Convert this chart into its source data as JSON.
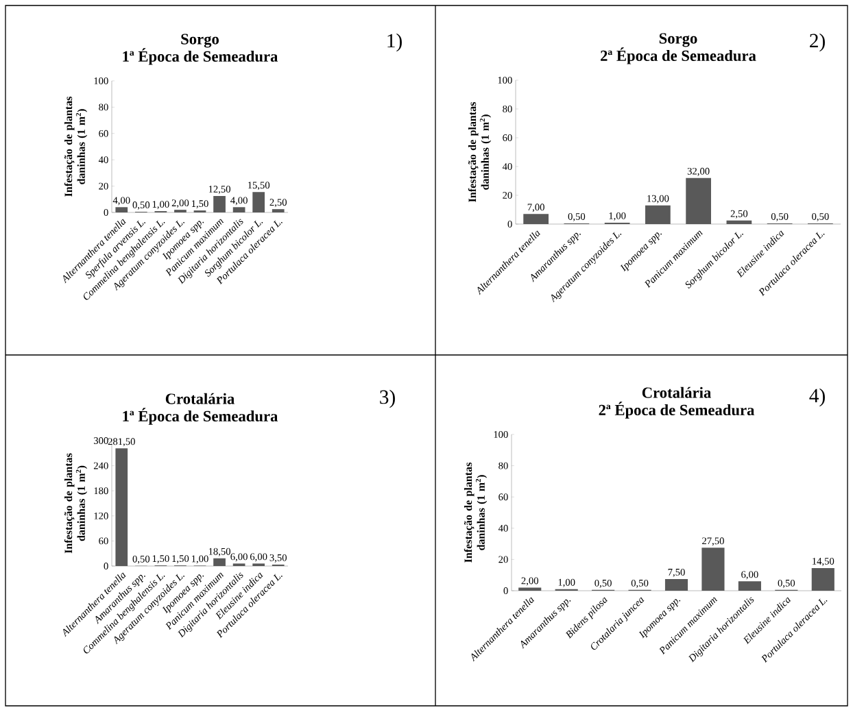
{
  "chart_data": [
    {
      "type": "bar",
      "title": "Sorgo",
      "subtitle": "1ª Época de Semeadura",
      "ylabel": "Infestação de plantas daninhas (1 m$^{2}$)",
      "annotations": [
        "1)"
      ],
      "categories": [
        "Alternanthera tenella",
        "Sperfula arvensis L.",
        "Commelina benghalensis L.",
        "Ageratum conyzoides L.",
        "Ipomoea spp.",
        "Panicum maximum",
        "Digitaria horizontalis",
        "Sorghum bicolor L.",
        "Portulaca oleracea L."
      ],
      "values": [
        4,
        0.5,
        1,
        2,
        1.5,
        12.5,
        4,
        15.5,
        2.5
      ],
      "value_labels": [
        "4,00",
        "0,50",
        "1,00",
        "2,00",
        "1,50",
        "12,50",
        "4,00",
        "15,50",
        "2,50"
      ],
      "color": "#595959",
      "ylim": [
        0,
        100
      ],
      "yticks": [
        0,
        20,
        40,
        60,
        80,
        100
      ]
    },
    {
      "type": "bar",
      "title": "Sorgo",
      "subtitle": "2ª Época de Semeadura",
      "ylabel": "Infestação de plantas daninhas (1 m$^{2}$)",
      "annotations": [
        "2)"
      ],
      "categories": [
        "Alternanthera tenella",
        "Amaranthus spp.",
        "Ageratum conyzoides L.",
        "Ipomoea spp.",
        "Panicum maximum",
        "Sorghum bicolor L.",
        "Eleusine indica",
        "Portulaca oleracea L."
      ],
      "values": [
        7,
        0.5,
        1,
        13,
        32,
        2.5,
        0.5,
        0.5
      ],
      "value_labels": [
        "7,00",
        "0,50",
        "1,00",
        "13,00",
        "32,00",
        "2,50",
        "0,50",
        "0,50"
      ],
      "color": "#595959",
      "ylim": [
        0,
        100
      ],
      "yticks": [
        0,
        20,
        40,
        60,
        80,
        100
      ]
    },
    {
      "type": "bar",
      "title": "Crotalária",
      "subtitle": "1ª Época de Semeadura",
      "ylabel": "Infestação de plantas daninhas (1 m$^{2}$)",
      "annotations": [
        "3)"
      ],
      "categories": [
        "Alternanthera tenella",
        "Amaranthus spp.",
        "Commelina benghalensis L.",
        "Ageratum conyzoides L.",
        "Ipomoea spp.",
        "Panicum maximum",
        "Digitaria horizontalis",
        "Eleusine indica",
        "Portulaca oleracea L."
      ],
      "values": [
        281.5,
        0.5,
        1.5,
        1.5,
        1,
        18.5,
        6,
        6,
        3.5
      ],
      "value_labels": [
        "281,50",
        "0,50",
        "1,50",
        "1,50",
        "1,00",
        "18,50",
        "6,00",
        "6,00",
        "3,50"
      ],
      "color": "#595959",
      "ylim": [
        0,
        300
      ],
      "yticks": [
        0,
        60,
        120,
        180,
        240,
        300
      ]
    },
    {
      "type": "bar",
      "title": "Crotalária",
      "subtitle": "2ª Época de Semeadura",
      "ylabel": "Infestação de plantas daninhas (1 m$^{2}$)",
      "annotations": [
        "4)"
      ],
      "categories": [
        "Alternanthera tenella",
        "Amaranthus spp.",
        "Bidens pilosa",
        "Crotalaria juncea",
        "Ipomoea spp.",
        "Panicum maximum",
        "Digitaria horizontalis",
        "Eleusine indica",
        "Portulaca oleracea L."
      ],
      "values": [
        2,
        1,
        0.5,
        0.5,
        7.5,
        27.5,
        6,
        0.5,
        14.5
      ],
      "value_labels": [
        "2,00",
        "1,00",
        "0,50",
        "0,50",
        "7,50",
        "27,50",
        "6,00",
        "0,50",
        "14,50"
      ],
      "color": "#595959",
      "ylim": [
        0,
        100
      ],
      "yticks": [
        0,
        20,
        40,
        60,
        80,
        100
      ]
    }
  ]
}
